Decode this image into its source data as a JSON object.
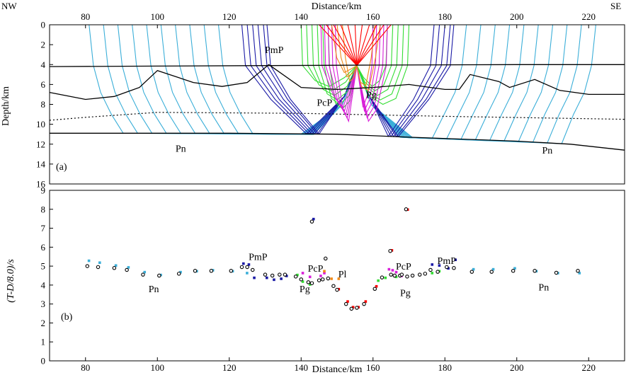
{
  "chart_data": [
    {
      "type": "ray-diagram",
      "panel_label": "(a)",
      "corner_labels": {
        "left": "NW",
        "right": "SE"
      },
      "xlabel": "Distance/km",
      "ylabel": "Depth/km",
      "xlim": [
        70,
        230
      ],
      "ylim": [
        0,
        16
      ],
      "x_ticks": [
        80,
        100,
        120,
        140,
        160,
        180,
        200,
        220
      ],
      "y_ticks": [
        0,
        2,
        4,
        6,
        8,
        10,
        12,
        14,
        16
      ],
      "source": {
        "x": 155.5,
        "depth": 4.1
      },
      "phase_colors": {
        "Pn": "#3aaed8",
        "PmP": "#1a1aa6",
        "PcP": "#d81ed8",
        "Pg": "#33dd33",
        "Pl": "#f08a1a",
        "direct": "#ff0000",
        "interface": "#000000"
      },
      "annotations": [
        {
          "text": "PmP",
          "x": 132.5,
          "depth": 2.5
        },
        {
          "text": "PcP",
          "x": 146.5,
          "depth": 7.8
        },
        {
          "text": "Pg",
          "x": 159.5,
          "depth": 7.0
        },
        {
          "text": "Pn",
          "x": 106.5,
          "depth": 12.4
        },
        {
          "text": "Pn",
          "x": 208.5,
          "depth": 12.6
        }
      ],
      "interfaces": [
        {
          "name": "upper-interface",
          "style": "solid",
          "points": [
            [
              70,
              4.2
            ],
            [
              100,
              4.15
            ],
            [
              130,
              4.1
            ],
            [
              160,
              4.05
            ],
            [
              200,
              4.0
            ],
            [
              230,
              4.0
            ]
          ]
        },
        {
          "name": "middle-interface",
          "style": "solid",
          "points": [
            [
              70,
              6.8
            ],
            [
              80,
              7.5
            ],
            [
              88,
              7.2
            ],
            [
              95,
              6.3
            ],
            [
              100,
              4.6
            ],
            [
              110,
              5.8
            ],
            [
              118,
              6.2
            ],
            [
              125,
              5.8
            ],
            [
              131,
              4.0
            ],
            [
              140,
              6.3
            ],
            [
              150,
              6.5
            ],
            [
              160,
              6.3
            ],
            [
              170,
              6.0
            ],
            [
              176,
              6.3
            ],
            [
              180,
              6.5
            ],
            [
              184,
              6.5
            ],
            [
              187,
              5.0
            ],
            [
              195,
              5.7
            ],
            [
              198,
              6.3
            ],
            [
              205,
              5.5
            ],
            [
              212,
              6.6
            ],
            [
              220,
              7.0
            ],
            [
              230,
              7.0
            ]
          ]
        },
        {
          "name": "dashed-interface",
          "style": "dashed",
          "points": [
            [
              70,
              9.6
            ],
            [
              80,
              9.3
            ],
            [
              100,
              8.8
            ],
            [
              140,
              8.9
            ],
            [
              180,
              9.2
            ],
            [
              230,
              9.5
            ]
          ]
        },
        {
          "name": "moho",
          "style": "solid",
          "points": [
            [
              70,
              10.9
            ],
            [
              120,
              10.9
            ],
            [
              150,
              11.0
            ],
            [
              170,
              11.3
            ],
            [
              200,
              11.7
            ],
            [
              215,
              12.0
            ],
            [
              230,
              12.6
            ]
          ]
        }
      ],
      "pn_left_surface_x": [
        81,
        85,
        89,
        93,
        97,
        101,
        105,
        109,
        113,
        117
      ],
      "pn_right_surface_x": [
        186,
        190,
        194,
        198,
        202,
        206,
        210,
        214,
        218,
        222
      ],
      "pmp_surface_x": [
        123.5,
        125,
        126.5,
        128,
        129.5,
        130.5,
        177,
        178.5,
        180,
        181.5,
        182.5
      ],
      "pg_surface_x": [
        140,
        141.5,
        143,
        144.5,
        146,
        147.5,
        164,
        165.5,
        167,
        168.5,
        170
      ],
      "pcp_surface_x": [
        145.5,
        146.5,
        147.5,
        148.5,
        149.5,
        160,
        161,
        162,
        163,
        164
      ],
      "pl_surface_x": [
        148.5,
        150,
        151.5,
        160.5,
        162
      ],
      "direct_surface_x": [
        145,
        147,
        149,
        151,
        153,
        155,
        157,
        159,
        161,
        163,
        165
      ]
    },
    {
      "type": "scatter",
      "panel_label": "(b)",
      "xlabel": "Distance/km",
      "ylabel": "(T-D/8.0)/s",
      "xlim": [
        70,
        230
      ],
      "ylim": [
        0,
        9
      ],
      "x_ticks": [
        80,
        100,
        120,
        140,
        160,
        180,
        200,
        220
      ],
      "y_ticks": [
        0,
        1,
        2,
        3,
        4,
        5,
        6,
        7,
        8,
        9
      ],
      "annotations": [
        {
          "text": "PmP",
          "x": 128,
          "y": 5.5
        },
        {
          "text": "PcP",
          "x": 144,
          "y": 4.9
        },
        {
          "text": "Pl",
          "x": 151.5,
          "y": 4.6
        },
        {
          "text": "Pg",
          "x": 141,
          "y": 3.8
        },
        {
          "text": "Pn",
          "x": 99,
          "y": 3.8
        },
        {
          "text": "PcP",
          "x": 168.5,
          "y": 5.0
        },
        {
          "text": "PmP",
          "x": 180.5,
          "y": 5.3
        },
        {
          "text": "Pg",
          "x": 169,
          "y": 3.6
        },
        {
          "text": "Pn",
          "x": 207.5,
          "y": 3.9
        }
      ],
      "series": [
        {
          "name": "observed",
          "style": "open-circle",
          "color": "#000000",
          "points": [
            [
              80.5,
              5.0
            ],
            [
              83.5,
              4.95
            ],
            [
              88,
              4.9
            ],
            [
              91.5,
              4.8
            ],
            [
              96,
              4.55
            ],
            [
              100.5,
              4.5
            ],
            [
              106,
              4.6
            ],
            [
              110.5,
              4.75
            ],
            [
              115,
              4.75
            ],
            [
              120.5,
              4.75
            ],
            [
              123.5,
              4.95
            ],
            [
              125,
              4.95
            ],
            [
              126.5,
              4.8
            ],
            [
              130,
              4.55
            ],
            [
              132,
              4.5
            ],
            [
              134,
              4.55
            ],
            [
              135.5,
              4.55
            ],
            [
              138.5,
              4.45
            ],
            [
              140,
              4.3
            ],
            [
              142,
              4.15
            ],
            [
              143,
              4.1
            ],
            [
              145,
              4.25
            ],
            [
              146,
              4.3
            ],
            [
              147.5,
              4.35
            ],
            [
              149,
              3.95
            ],
            [
              150,
              3.75
            ],
            [
              152.5,
              3.0
            ],
            [
              154,
              2.75
            ],
            [
              155.5,
              2.8
            ],
            [
              157.5,
              3.0
            ],
            [
              160.5,
              3.8
            ],
            [
              162.5,
              4.4
            ],
            [
              165,
              4.55
            ],
            [
              166,
              4.5
            ],
            [
              167.5,
              4.5
            ],
            [
              168,
              4.55
            ],
            [
              169.5,
              4.45
            ],
            [
              171,
              4.5
            ],
            [
              173,
              4.55
            ],
            [
              174.5,
              4.6
            ],
            [
              176,
              4.8
            ],
            [
              178,
              4.7
            ],
            [
              180.5,
              4.95
            ],
            [
              182.5,
              4.9
            ],
            [
              187.5,
              4.7
            ],
            [
              193,
              4.7
            ],
            [
              199,
              4.75
            ],
            [
              205,
              4.75
            ],
            [
              211,
              4.65
            ],
            [
              217,
              4.75
            ],
            [
              143,
              7.35
            ],
            [
              169.2,
              8.0
            ],
            [
              164.8,
              5.8
            ],
            [
              146.8,
              5.4
            ]
          ]
        },
        {
          "name": "Pn",
          "style": "square",
          "color": "#3aaed8",
          "points": [
            [
              80.5,
              5.2
            ],
            [
              83.5,
              5.1
            ],
            [
              88,
              4.95
            ],
            [
              91.5,
              4.85
            ],
            [
              96,
              4.6
            ],
            [
              100.5,
              4.45
            ],
            [
              106,
              4.6
            ],
            [
              110.5,
              4.65
            ],
            [
              115,
              4.7
            ],
            [
              120.5,
              4.65
            ],
            [
              124.5,
              4.55
            ],
            [
              187.5,
              4.75
            ],
            [
              193,
              4.75
            ],
            [
              199,
              4.8
            ],
            [
              205,
              4.65
            ],
            [
              211,
              4.55
            ],
            [
              217,
              4.55
            ]
          ]
        },
        {
          "name": "PmP",
          "style": "square",
          "color": "#1a1aa6",
          "points": [
            [
              123.5,
              5.05
            ],
            [
              125,
              5.0
            ],
            [
              126.5,
              4.3
            ],
            [
              130,
              4.3
            ],
            [
              132,
              4.2
            ],
            [
              134,
              4.25
            ],
            [
              135.5,
              4.4
            ],
            [
              176,
              5.0
            ],
            [
              178,
              4.95
            ],
            [
              180.5,
              4.8
            ],
            [
              182.5,
              5.25
            ],
            [
              143,
              7.4
            ]
          ]
        },
        {
          "name": "PcP",
          "style": "square",
          "color": "#d81ed8",
          "points": [
            [
              140,
              4.55
            ],
            [
              142,
              4.35
            ],
            [
              145,
              4.4
            ],
            [
              146,
              4.55
            ],
            [
              164,
              4.75
            ],
            [
              165,
              4.7
            ],
            [
              166,
              4.6
            ],
            [
              167.5,
              4.4
            ]
          ]
        },
        {
          "name": "Pg",
          "style": "square",
          "color": "#33dd33",
          "points": [
            [
              138.5,
              4.45
            ],
            [
              140,
              4.1
            ],
            [
              142,
              3.95
            ],
            [
              161,
              4.15
            ],
            [
              163,
              4.3
            ],
            [
              166,
              4.35
            ],
            [
              176,
              4.55
            ],
            [
              178,
              4.65
            ]
          ]
        },
        {
          "name": "Pl",
          "style": "square",
          "color": "#f08a1a",
          "points": [
            [
              146,
              4.65
            ],
            [
              148,
              4.25
            ],
            [
              150,
              4.25
            ]
          ]
        },
        {
          "name": "direct",
          "style": "square",
          "color": "#ff0000",
          "points": [
            [
              150,
              3.7
            ],
            [
              152.5,
              3.05
            ],
            [
              154,
              2.75
            ],
            [
              155.5,
              2.75
            ],
            [
              157.5,
              3.05
            ],
            [
              160.5,
              3.85
            ],
            [
              169.2,
              7.9
            ],
            [
              164.8,
              5.75
            ]
          ]
        }
      ]
    }
  ]
}
